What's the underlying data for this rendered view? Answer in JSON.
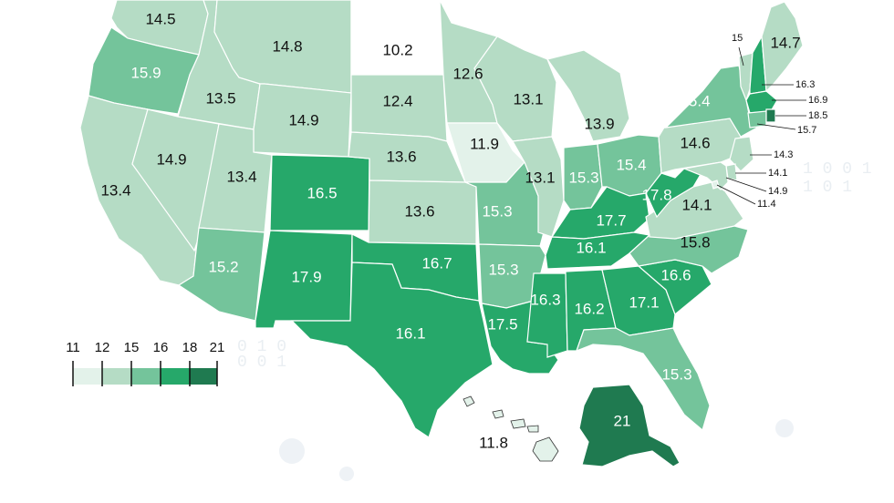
{
  "colors": {
    "c11_12": "#e3f2ea",
    "c12_15": "#b5dcc5",
    "c15_16": "#74c49b",
    "c16_18": "#26a86a",
    "c18_21": "#1f7a50",
    "below": "#ffffff"
  },
  "legend": {
    "ticks": [
      "11",
      "12",
      "15",
      "16",
      "18",
      "21"
    ]
  },
  "states": [
    {
      "name": "WA",
      "label": "14.5"
    },
    {
      "name": "OR",
      "label": "15.9"
    },
    {
      "name": "CA",
      "label": "13.4"
    },
    {
      "name": "ID",
      "label": "13.5"
    },
    {
      "name": "NV",
      "label": "14.9"
    },
    {
      "name": "MT",
      "label": "14.8"
    },
    {
      "name": "WY",
      "label": "14.9"
    },
    {
      "name": "UT",
      "label": "13.4"
    },
    {
      "name": "AZ",
      "label": "15.2"
    },
    {
      "name": "CO",
      "label": "16.5"
    },
    {
      "name": "NM",
      "label": "17.9"
    },
    {
      "name": "ND",
      "label": "10.2"
    },
    {
      "name": "SD",
      "label": "12.4"
    },
    {
      "name": "NE",
      "label": "13.6"
    },
    {
      "name": "KS",
      "label": "13.6"
    },
    {
      "name": "OK",
      "label": "16.7"
    },
    {
      "name": "TX",
      "label": "16.1"
    },
    {
      "name": "MN",
      "label": "12.6"
    },
    {
      "name": "IA",
      "label": "11.9"
    },
    {
      "name": "MO",
      "label": "15.3"
    },
    {
      "name": "AR",
      "label": "15.3"
    },
    {
      "name": "LA",
      "label": "17.5"
    },
    {
      "name": "WI",
      "label": "13.1"
    },
    {
      "name": "IL",
      "label": "13.1"
    },
    {
      "name": "MI",
      "label": "13.9"
    },
    {
      "name": "IN",
      "label": "15.3"
    },
    {
      "name": "OH",
      "label": "15.4"
    },
    {
      "name": "KY",
      "label": "17.7"
    },
    {
      "name": "TN",
      "label": "16.1"
    },
    {
      "name": "MS",
      "label": "16.3"
    },
    {
      "name": "AL",
      "label": "16.2"
    },
    {
      "name": "GA",
      "label": "17.1"
    },
    {
      "name": "FL",
      "label": "15.3"
    },
    {
      "name": "SC",
      "label": "16.6"
    },
    {
      "name": "NC",
      "label": "15.8"
    },
    {
      "name": "VA",
      "label": "14.1"
    },
    {
      "name": "WV",
      "label": "17.8"
    },
    {
      "name": "PA",
      "label": "14.6"
    },
    {
      "name": "NY",
      "label": "15.4"
    },
    {
      "name": "VT",
      "label": "15"
    },
    {
      "name": "NH",
      "label": "16.3"
    },
    {
      "name": "ME",
      "label": "14.7"
    },
    {
      "name": "MA",
      "label": "16.9"
    },
    {
      "name": "RI",
      "label": "18.5"
    },
    {
      "name": "CT",
      "label": "15.7"
    },
    {
      "name": "NJ",
      "label": "14.3"
    },
    {
      "name": "DE",
      "label": "14.1"
    },
    {
      "name": "MD",
      "label": "14.9"
    },
    {
      "name": "DC",
      "label": "11.4"
    },
    {
      "name": "AK",
      "label": "21"
    },
    {
      "name": "HI",
      "label": "11.8"
    }
  ]
}
